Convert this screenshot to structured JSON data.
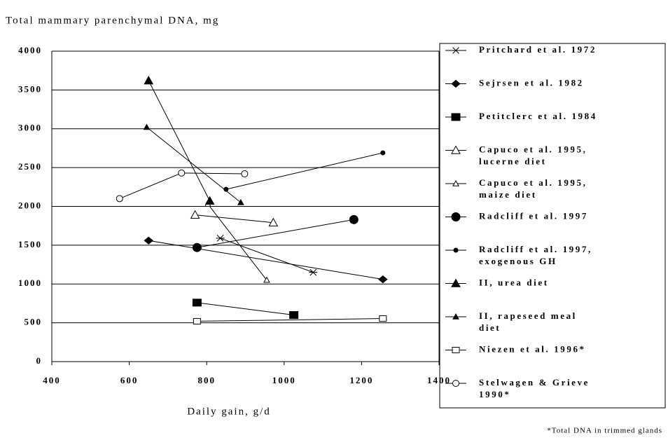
{
  "chart_data": {
    "type": "line",
    "title": "Total mammary parenchymal DNA, mg",
    "x_label": "Daily gain, g/d",
    "footnote": "*Total DNA in trimmed glands",
    "xlim": [
      400,
      1400
    ],
    "xticks": [
      400,
      600,
      800,
      1000,
      1200,
      1400
    ],
    "ylim": [
      0,
      4000
    ],
    "yticks": [
      0,
      500,
      1000,
      1500,
      2000,
      2500,
      3000,
      3500,
      4000
    ],
    "grid": true,
    "series": [
      {
        "name": "Pritchard et al. 1972",
        "marker": "asterisk",
        "color": "#000000",
        "x": [
          835,
          1075
        ],
        "values": [
          1590,
          1150
        ]
      },
      {
        "name": "Sejrsen et al. 1982",
        "marker": "diamond",
        "color": "#000000",
        "x": [
          650,
          1255
        ],
        "values": [
          1560,
          1060
        ]
      },
      {
        "name": "Petitclerc et al. 1984",
        "marker": "square",
        "color": "#000000",
        "x": [
          775,
          1025
        ],
        "values": [
          760,
          600
        ]
      },
      {
        "name": "Capuco et al. 1995,\nlucerne diet",
        "marker": "triangle-open",
        "color": "#000000",
        "x": [
          770,
          972
        ],
        "values": [
          1890,
          1790
        ]
      },
      {
        "name": "Capuco et al. 1995,\nmaize diet",
        "marker": "triangle-open-small",
        "color": "#000000",
        "x": [
          803,
          955
        ],
        "values": [
          2030,
          1050
        ]
      },
      {
        "name": "Radcliff et al. 1997",
        "marker": "circle",
        "color": "#000000",
        "x": [
          775,
          1180
        ],
        "values": [
          1470,
          1830
        ]
      },
      {
        "name": "Radcliff et al. 1997,\nexogenous GH",
        "marker": "circle-small",
        "color": "#000000",
        "x": [
          850,
          1255
        ],
        "values": [
          2220,
          2690
        ]
      },
      {
        "name": "II, urea diet",
        "marker": "triangle",
        "color": "#000000",
        "x": [
          650,
          808
        ],
        "values": [
          3620,
          2070
        ]
      },
      {
        "name": "II, rapeseed meal\ndiet",
        "marker": "triangle-small",
        "color": "#000000",
        "x": [
          645,
          888
        ],
        "values": [
          3020,
          2050
        ]
      },
      {
        "name": "Niezen et al. 1996*",
        "marker": "square-open",
        "color": "#000000",
        "x": [
          775,
          1255
        ],
        "values": [
          520,
          555
        ]
      },
      {
        "name": "Stelwagen & Grieve\n1990*",
        "marker": "circle-open",
        "color": "#000000",
        "x": [
          575,
          735,
          898
        ],
        "values": [
          2100,
          2430,
          2420
        ]
      }
    ]
  }
}
